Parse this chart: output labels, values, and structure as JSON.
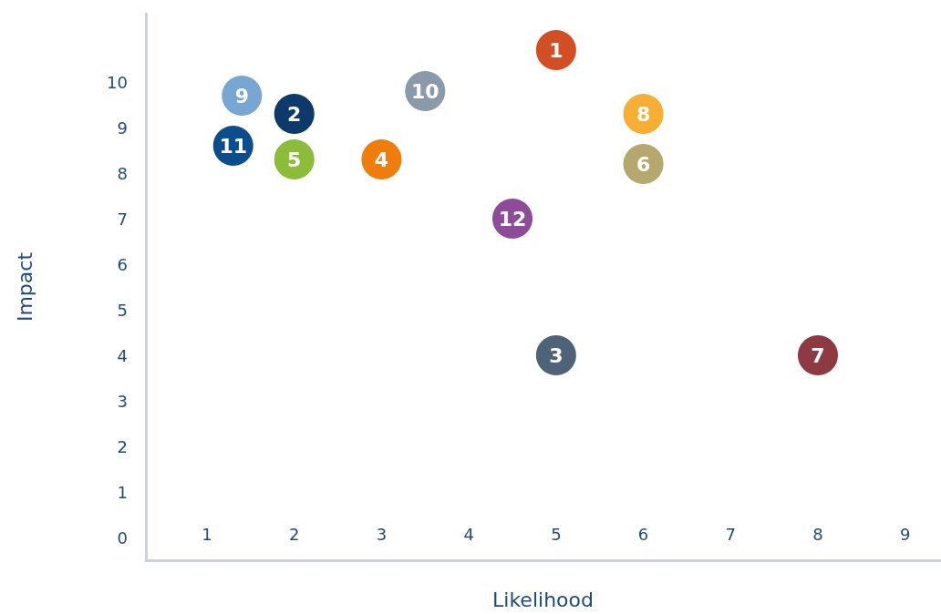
{
  "chart_data": {
    "type": "scatter",
    "xlabel": "Likelihood",
    "ylabel": "Impact",
    "xlim": [
      0.3,
      9.4
    ],
    "ylim": [
      -0.5,
      11.5
    ],
    "xticks": [
      1,
      2,
      3,
      4,
      5,
      6,
      7,
      8,
      9
    ],
    "yticks": [
      0,
      1,
      2,
      3,
      4,
      5,
      6,
      7,
      8,
      9,
      10
    ],
    "grid": false,
    "legend": false,
    "marker": "circle",
    "series": [
      {
        "name": "1",
        "color": "#d24e25",
        "x": [
          5.0
        ],
        "values": [
          10.7
        ]
      },
      {
        "name": "2",
        "color": "#0d3a6b",
        "x": [
          2.0
        ],
        "values": [
          9.3
        ]
      },
      {
        "name": "3",
        "color": "#4f6378",
        "x": [
          5.0
        ],
        "values": [
          4.0
        ]
      },
      {
        "name": "4",
        "color": "#ef7d0e",
        "x": [
          3.0
        ],
        "values": [
          8.3
        ]
      },
      {
        "name": "5",
        "color": "#8cbd3a",
        "x": [
          2.0
        ],
        "values": [
          8.3
        ]
      },
      {
        "name": "6",
        "color": "#b5a86e",
        "x": [
          6.0
        ],
        "values": [
          8.2
        ]
      },
      {
        "name": "7",
        "color": "#8e3a43",
        "x": [
          8.0
        ],
        "values": [
          4.0
        ]
      },
      {
        "name": "8",
        "color": "#f6ae35",
        "x": [
          6.0
        ],
        "values": [
          9.3
        ]
      },
      {
        "name": "9",
        "color": "#78a6d2",
        "x": [
          1.4
        ],
        "values": [
          9.7
        ]
      },
      {
        "name": "10",
        "color": "#8a9aa8",
        "x": [
          3.5
        ],
        "values": [
          9.8
        ]
      },
      {
        "name": "11",
        "color": "#0c4d8e",
        "x": [
          1.3
        ],
        "values": [
          8.6
        ]
      },
      {
        "name": "12",
        "color": "#8e4b98",
        "x": [
          4.5
        ],
        "values": [
          7.0
        ]
      }
    ]
  }
}
